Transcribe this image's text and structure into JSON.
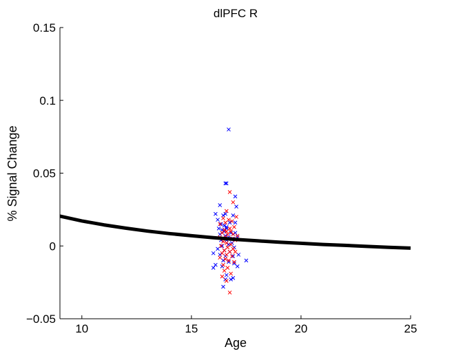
{
  "chart_data": {
    "type": "scatter",
    "title": "dlPFC R",
    "xlabel": "Age",
    "ylabel": "% Signal Change",
    "xlim": [
      9,
      25
    ],
    "ylim": [
      -0.05,
      0.15
    ],
    "xticks": [
      10,
      15,
      20,
      25
    ],
    "xtick_labels": [
      "10",
      "15",
      "20",
      "25"
    ],
    "yticks": [
      -0.05,
      0,
      0.05,
      0.1,
      0.15
    ],
    "ytick_labels": [
      "−0.05",
      "0",
      "0.05",
      "0.1",
      "0.15"
    ],
    "grid": false,
    "colors": {
      "blue": "#0000ff",
      "red": "#ff0000",
      "fit": "#000000"
    },
    "fit_line": {
      "x": [
        9,
        10,
        11,
        12,
        13,
        14,
        15,
        16,
        17,
        18,
        19,
        20,
        21,
        22,
        23,
        24,
        25
      ],
      "y": [
        0.0205,
        0.0172,
        0.0145,
        0.0122,
        0.0102,
        0.0085,
        0.007,
        0.0057,
        0.0045,
        0.0035,
        0.0026,
        0.0018,
        0.001,
        0.0004,
        -0.0003,
        -0.0009,
        -0.0015
      ]
    },
    "series": [
      {
        "marker": "x",
        "color": "#0000ff",
        "points": [
          [
            16.7,
            0.08
          ],
          [
            16.55,
            0.043
          ],
          [
            16.6,
            0.043
          ],
          [
            17.0,
            0.034
          ],
          [
            16.3,
            0.028
          ],
          [
            17.05,
            0.027
          ],
          [
            16.1,
            0.022
          ],
          [
            16.45,
            0.021
          ],
          [
            16.55,
            0.022
          ],
          [
            16.9,
            0.021
          ],
          [
            16.2,
            0.018
          ],
          [
            16.35,
            0.015
          ],
          [
            16.5,
            0.014
          ],
          [
            16.6,
            0.013
          ],
          [
            16.75,
            0.016
          ],
          [
            17.0,
            0.016
          ],
          [
            16.25,
            0.012
          ],
          [
            16.4,
            0.011
          ],
          [
            16.5,
            0.01
          ],
          [
            16.6,
            0.012
          ],
          [
            16.8,
            0.009
          ],
          [
            17.0,
            0.009
          ],
          [
            16.3,
            0.008
          ],
          [
            16.55,
            0.007
          ],
          [
            16.7,
            0.006
          ],
          [
            16.9,
            0.005
          ],
          [
            17.1,
            0.006
          ],
          [
            16.35,
            0.004
          ],
          [
            16.6,
            0.004
          ],
          [
            16.85,
            0.002
          ],
          [
            16.4,
            0.0
          ],
          [
            16.7,
            0.001
          ],
          [
            16.95,
            -0.001
          ],
          [
            16.2,
            -0.002
          ],
          [
            16.5,
            -0.003
          ],
          [
            16.75,
            -0.004
          ],
          [
            16.0,
            -0.005
          ],
          [
            16.3,
            -0.006
          ],
          [
            16.55,
            -0.007
          ],
          [
            16.9,
            -0.007
          ],
          [
            17.15,
            -0.006
          ],
          [
            16.45,
            -0.01
          ],
          [
            16.7,
            -0.011
          ],
          [
            16.95,
            -0.012
          ],
          [
            17.5,
            -0.01
          ],
          [
            16.1,
            -0.013
          ],
          [
            16.4,
            -0.014
          ],
          [
            16.0,
            -0.015
          ],
          [
            17.1,
            -0.014
          ],
          [
            16.6,
            -0.02
          ],
          [
            16.9,
            -0.022
          ],
          [
            16.55,
            -0.023
          ],
          [
            16.45,
            -0.028
          ],
          [
            16.8,
            -0.023
          ]
        ]
      },
      {
        "marker": "x",
        "color": "#ff0000",
        "points": [
          [
            16.75,
            0.037
          ],
          [
            16.9,
            0.03
          ],
          [
            16.6,
            0.024
          ],
          [
            17.05,
            0.02
          ],
          [
            16.45,
            0.019
          ],
          [
            16.7,
            0.018
          ],
          [
            16.85,
            0.017
          ],
          [
            16.55,
            0.016
          ],
          [
            16.3,
            0.015
          ],
          [
            16.95,
            0.013
          ],
          [
            16.75,
            0.012
          ],
          [
            16.5,
            0.011
          ],
          [
            16.6,
            0.01
          ],
          [
            16.8,
            0.01
          ],
          [
            16.4,
            0.009
          ],
          [
            16.65,
            0.008
          ],
          [
            16.9,
            0.008
          ],
          [
            17.1,
            0.007
          ],
          [
            16.3,
            0.006
          ],
          [
            16.55,
            0.006
          ],
          [
            16.7,
            0.005
          ],
          [
            16.85,
            0.005
          ],
          [
            17.0,
            0.004
          ],
          [
            16.45,
            0.003
          ],
          [
            16.6,
            0.002
          ],
          [
            16.8,
            0.001
          ],
          [
            16.35,
            0.0
          ],
          [
            16.65,
            -0.001
          ],
          [
            16.9,
            -0.002
          ],
          [
            16.5,
            -0.003
          ],
          [
            16.75,
            -0.004
          ],
          [
            17.0,
            -0.004
          ],
          [
            16.4,
            -0.005
          ],
          [
            16.6,
            -0.006
          ],
          [
            16.85,
            -0.007
          ],
          [
            16.3,
            -0.008
          ],
          [
            16.55,
            -0.009
          ],
          [
            16.7,
            -0.01
          ],
          [
            16.95,
            -0.011
          ],
          [
            16.45,
            -0.013
          ],
          [
            16.65,
            -0.015
          ],
          [
            16.5,
            -0.017
          ],
          [
            16.8,
            -0.019
          ],
          [
            16.4,
            -0.021
          ],
          [
            16.6,
            -0.024
          ],
          [
            16.75,
            -0.032
          ]
        ]
      }
    ]
  }
}
